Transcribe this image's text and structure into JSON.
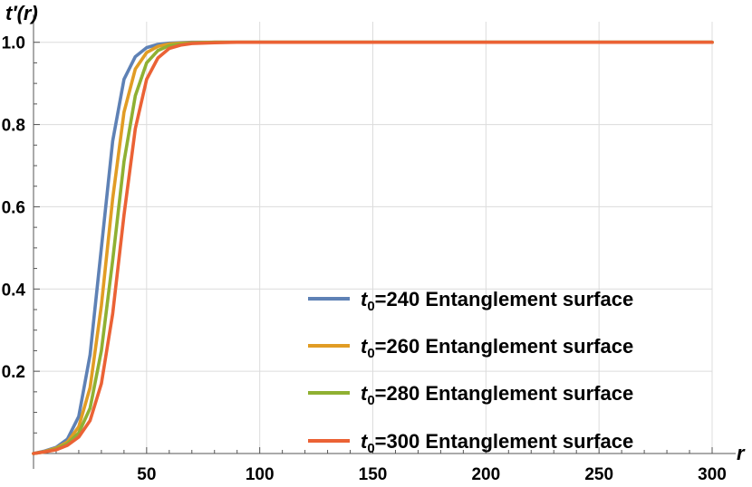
{
  "chart_data": {
    "type": "line",
    "xlabel": "r",
    "ylabel": "t′(r)",
    "xlim": [
      0,
      300
    ],
    "ylim": [
      0,
      1.05
    ],
    "x_ticks": [
      50,
      100,
      150,
      200,
      250,
      300
    ],
    "y_ticks": [
      0.2,
      0.4,
      0.6,
      0.8,
      1.0
    ],
    "x_tick_labels": [
      "50",
      "100",
      "150",
      "200",
      "250",
      "300"
    ],
    "y_tick_labels": [
      "0.2",
      "0.4",
      "0.6",
      "0.8",
      "1.0"
    ],
    "grid": true,
    "legend_position": "bottom-right",
    "series": [
      {
        "name": "t0=240 Entanglement surface",
        "legend_t": "t",
        "legend_sub": "0",
        "legend_rest": "=240 Entanglement surface",
        "color": "#5E81B5",
        "x": [
          0,
          5,
          10,
          15,
          20,
          25,
          30,
          35,
          40,
          45,
          50,
          55,
          60,
          65,
          70,
          80,
          90,
          100,
          150,
          200,
          250,
          300
        ],
        "y": [
          0,
          0.006,
          0.015,
          0.035,
          0.09,
          0.24,
          0.5,
          0.76,
          0.91,
          0.965,
          0.987,
          0.995,
          0.998,
          0.999,
          1.0,
          1.0,
          1.0,
          1.0,
          1.0,
          1.0,
          1.0,
          1.0
        ]
      },
      {
        "name": "t0=260 Entanglement surface",
        "legend_t": "t",
        "legend_sub": "0",
        "legend_rest": "=260 Entanglement surface",
        "color": "#E19C24",
        "x": [
          0,
          5,
          10,
          15,
          20,
          25,
          30,
          35,
          40,
          45,
          50,
          55,
          60,
          65,
          70,
          80,
          90,
          100,
          150,
          200,
          250,
          300
        ],
        "y": [
          0,
          0.005,
          0.013,
          0.028,
          0.065,
          0.16,
          0.36,
          0.62,
          0.83,
          0.935,
          0.975,
          0.99,
          0.996,
          0.998,
          0.999,
          1.0,
          1.0,
          1.0,
          1.0,
          1.0,
          1.0,
          1.0
        ]
      },
      {
        "name": "t0=280 Entanglement surface",
        "legend_t": "t",
        "legend_sub": "0",
        "legend_rest": "=280 Entanglement surface",
        "color": "#8FB032",
        "x": [
          0,
          5,
          10,
          15,
          20,
          25,
          30,
          35,
          40,
          45,
          50,
          55,
          60,
          65,
          70,
          80,
          90,
          100,
          150,
          200,
          250,
          300
        ],
        "y": [
          0,
          0.004,
          0.011,
          0.024,
          0.05,
          0.11,
          0.25,
          0.47,
          0.71,
          0.87,
          0.95,
          0.98,
          0.992,
          0.996,
          0.998,
          1.0,
          1.0,
          1.0,
          1.0,
          1.0,
          1.0,
          1.0
        ]
      },
      {
        "name": "t0=300 Entanglement surface",
        "legend_t": "t",
        "legend_sub": "0",
        "legend_rest": "=300 Entanglement surface",
        "color": "#EB6235",
        "x": [
          0,
          5,
          10,
          15,
          20,
          25,
          30,
          35,
          40,
          45,
          50,
          55,
          60,
          65,
          70,
          80,
          90,
          100,
          150,
          200,
          250,
          300
        ],
        "y": [
          0,
          0.004,
          0.009,
          0.02,
          0.04,
          0.08,
          0.17,
          0.34,
          0.58,
          0.79,
          0.91,
          0.962,
          0.985,
          0.993,
          0.997,
          0.999,
          1.0,
          1.0,
          1.0,
          1.0,
          1.0,
          1.0
        ]
      }
    ]
  }
}
